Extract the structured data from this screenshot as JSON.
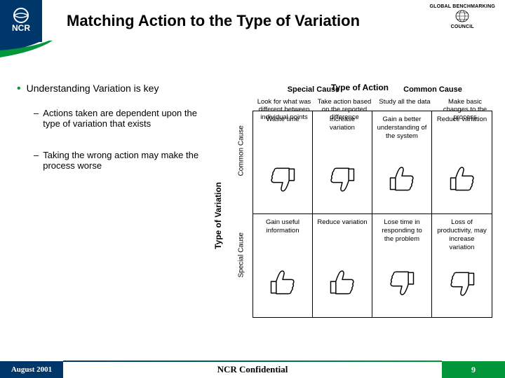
{
  "colors": {
    "ncr_blue": "#00376a",
    "ncr_green": "#009639",
    "black": "#000000",
    "white": "#ffffff"
  },
  "header": {
    "ncr_logo_text": "NCR",
    "title": "Matching Action to the Type of Variation",
    "gbc_top": "GLOBAL BENCHMARKING",
    "gbc_bottom": "COUNCIL"
  },
  "content": {
    "main_bullet": "Understanding Variation is key",
    "sub_bullets": [
      "Actions taken are dependent upon the type of variation that exists",
      "Taking the wrong action may make the process worse"
    ]
  },
  "chart": {
    "type": "matrix",
    "title": "Type of Action",
    "col_headers": [
      "Special Cause",
      "Common Cause"
    ],
    "row_axis_title": "Type of Variation",
    "row_headers": [
      "Common Cause",
      "Special Cause"
    ],
    "col_sub_a": "Look for what was different between individual points",
    "col_sub_b": "Take action based on the reported difference",
    "col_sub_c": "Study all the data",
    "col_sub_d": "Make basic changes to the process",
    "cells": [
      {
        "text": "Waste time",
        "thumb": "down"
      },
      {
        "text": "Increase variation",
        "thumb": "down"
      },
      {
        "text": "Gain a better understanding of the system",
        "thumb": "up"
      },
      {
        "text": "Reduce variation",
        "thumb": "up"
      },
      {
        "text": "Gain useful information",
        "thumb": "up"
      },
      {
        "text": "Reduce variation",
        "thumb": "up"
      },
      {
        "text": "Lose time in responding to the problem",
        "thumb": "down"
      },
      {
        "text": "Loss of productivity, may increase variation",
        "thumb": "down"
      }
    ],
    "grid_border_color": "#000000",
    "cell_fontsize": 9.5,
    "header_fontsize": 11,
    "title_fontsize": 12
  },
  "footer": {
    "date": "August 2001",
    "confidential": "NCR Confidential",
    "page": "9"
  }
}
